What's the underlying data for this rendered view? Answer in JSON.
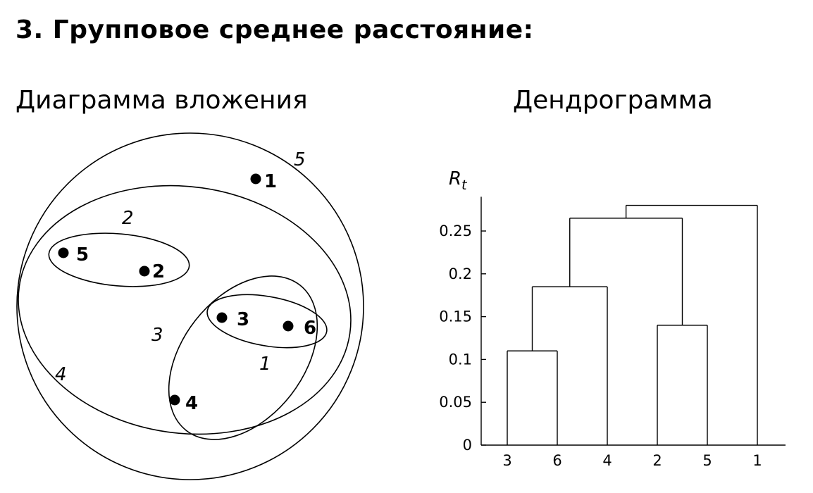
{
  "header": {
    "title": "3. Групповое среднее расстояние:",
    "left_subtitle": "Диаграмма вложения",
    "right_subtitle": "Дендрограмма"
  },
  "nesting_diagram": {
    "points": [
      {
        "label": "1"
      },
      {
        "label": "2"
      },
      {
        "label": "3"
      },
      {
        "label": "4"
      },
      {
        "label": "5"
      },
      {
        "label": "6"
      }
    ],
    "cluster_labels": [
      "1",
      "2",
      "3",
      "4",
      "5"
    ]
  },
  "chart_data": {
    "type": "dendrogram",
    "ylabel": "R_t",
    "ylim": [
      0,
      0.29
    ],
    "yticks": [
      0,
      0.05,
      0.1,
      0.15,
      0.2,
      0.25
    ],
    "ytick_labels": [
      "0",
      "0.05",
      "0.1",
      "0.15",
      "0.2",
      "0.25"
    ],
    "leaf_order": [
      "3",
      "6",
      "4",
      "2",
      "5",
      "1"
    ],
    "merges": [
      {
        "left": "3",
        "right": "6",
        "height": 0.11
      },
      {
        "left": "2",
        "right": "5",
        "height": 0.14
      },
      {
        "left": "3,6",
        "right": "4",
        "height": 0.185
      },
      {
        "left": "3,6,4",
        "right": "2,5",
        "height": 0.265
      },
      {
        "left": "3,6,4,2,5",
        "right": "1",
        "height": 0.28
      }
    ]
  }
}
